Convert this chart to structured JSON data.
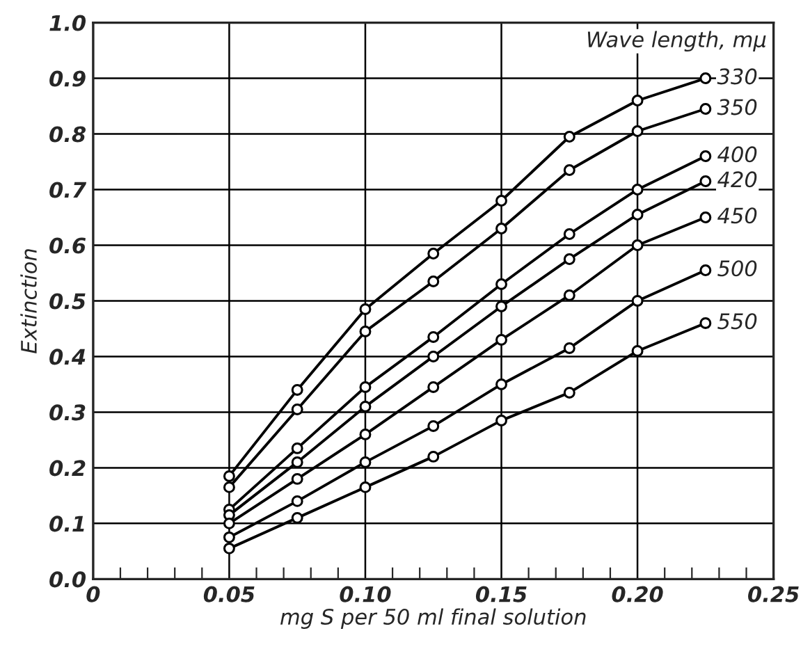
{
  "chart_data": {
    "type": "line",
    "xlabel": "mg S per 50 ml final solution",
    "ylabel": "Extinction",
    "legend_title": "Wave length, mμ",
    "x": [
      0.05,
      0.075,
      0.1,
      0.125,
      0.15,
      0.175,
      0.2,
      0.225
    ],
    "series": [
      {
        "name": "330",
        "color": "#000000",
        "values": [
          0.185,
          0.34,
          0.485,
          0.585,
          0.68,
          0.795,
          0.86,
          0.9
        ]
      },
      {
        "name": "350",
        "color": "#000000",
        "values": [
          0.165,
          0.305,
          0.445,
          0.535,
          0.63,
          0.735,
          0.805,
          0.845
        ]
      },
      {
        "name": "400",
        "color": "#000000",
        "values": [
          0.125,
          0.235,
          0.345,
          0.435,
          0.53,
          0.62,
          0.7,
          0.76
        ]
      },
      {
        "name": "420",
        "color": "#000000",
        "values": [
          0.115,
          0.21,
          0.31,
          0.4,
          0.49,
          0.575,
          0.655,
          0.715
        ]
      },
      {
        "name": "450",
        "color": "#000000",
        "values": [
          0.1,
          0.18,
          0.26,
          0.345,
          0.43,
          0.51,
          0.6,
          0.65
        ]
      },
      {
        "name": "500",
        "color": "#000000",
        "values": [
          0.075,
          0.14,
          0.21,
          0.275,
          0.35,
          0.415,
          0.5,
          0.555
        ]
      },
      {
        "name": "550",
        "color": "#000000",
        "values": [
          0.055,
          0.11,
          0.165,
          0.22,
          0.285,
          0.335,
          0.41,
          0.46
        ]
      }
    ],
    "xlim": [
      0,
      0.25
    ],
    "xticks": [
      {
        "value": 0,
        "label": "0"
      },
      {
        "value": 0.05,
        "label": "0.05"
      },
      {
        "value": 0.1,
        "label": "0.10"
      },
      {
        "value": 0.15,
        "label": "0.15"
      },
      {
        "value": 0.2,
        "label": "0.20"
      },
      {
        "value": 0.25,
        "label": "0.25"
      }
    ],
    "ylim": [
      0,
      1.0
    ],
    "yticks": [
      {
        "value": 0,
        "label": "0.0"
      },
      {
        "value": 0.1,
        "label": "0.1"
      },
      {
        "value": 0.2,
        "label": "0.2"
      },
      {
        "value": 0.3,
        "label": "0.3"
      },
      {
        "value": 0.4,
        "label": "0.4"
      },
      {
        "value": 0.5,
        "label": "0.5"
      },
      {
        "value": 0.6,
        "label": "0.6"
      },
      {
        "value": 0.7,
        "label": "0.7"
      },
      {
        "value": 0.8,
        "label": "0.8"
      },
      {
        "value": 0.9,
        "label": "0.9"
      },
      {
        "value": 1.0,
        "label": "1.0"
      }
    ],
    "grid": true,
    "marker": "circle",
    "line_style": "solid"
  }
}
